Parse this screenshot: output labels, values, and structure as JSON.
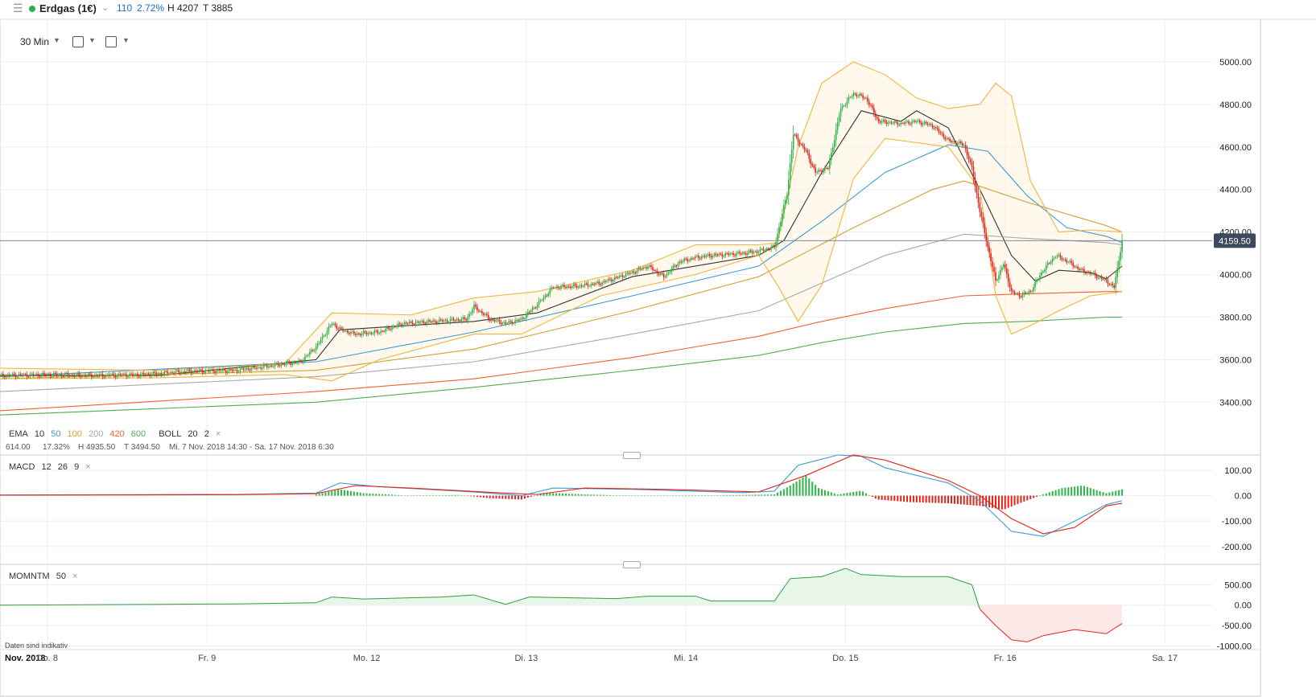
{
  "header": {
    "menu_icon": "hamburger-icon",
    "instrument": "Erdgas (1€)",
    "change": "110",
    "change_pct": "2.72%",
    "high": "H 4207",
    "low": "T 3885",
    "colors": {
      "live": "#2db34a",
      "change": "#1f6fb5"
    }
  },
  "toolbar": {
    "interval": "30 Min",
    "chart_type_icon": "candlestick-icon",
    "indicator_icon": "indicator-icon"
  },
  "indicators": {
    "ema": {
      "label": "EMA",
      "periods": [
        "10",
        "50",
        "100",
        "200",
        "420",
        "600"
      ],
      "colors": [
        "#333333",
        "#3f9bd0",
        "#d4a030",
        "#a8a8a8",
        "#f0622a",
        "#4caf50"
      ]
    },
    "boll": {
      "label": "BOLL",
      "p1": "20",
      "p2": "2"
    },
    "macd": {
      "label": "MACD",
      "p1": "12",
      "p2": "26",
      "p3": "9"
    },
    "momntm": {
      "label": "MOMNTM",
      "p1": "50"
    },
    "close_symbol": "×"
  },
  "range_info": {
    "range": "614.00",
    "range_pct": "17.32%",
    "high": "H 4935.50",
    "low": "T 3494.50",
    "period": "Mi. 7 Nov. 2018 14:30 - Sa. 17 Nov. 2018 6:30"
  },
  "current_price": "4159.50",
  "disclaimer": "Daten sind indikativ",
  "chart_data": [
    {
      "type": "candlestick",
      "title": "Erdgas (1€)",
      "ylim": [
        3250,
        5200
      ],
      "yticks": [
        "3400.00",
        "3600.00",
        "3800.00",
        "4000.00",
        "4200.00",
        "4400.00",
        "4600.00",
        "4800.00",
        "5000.00"
      ],
      "x_labels": [
        "Nov. 2018",
        "Do. 8",
        "Fr. 9",
        "Mo. 12",
        "Di. 13",
        "Mi. 14",
        "Do. 15",
        "Fr. 16",
        "Sa. 17"
      ],
      "x_ticks": [
        0,
        30,
        131,
        232,
        333,
        434,
        535,
        636,
        737
      ],
      "x_range": [
        0,
        767
      ],
      "last_bar_index": 710,
      "last_price": 4159.5,
      "close_anchors": [
        [
          0,
          3525
        ],
        [
          30,
          3530
        ],
        [
          60,
          3525
        ],
        [
          90,
          3530
        ],
        [
          120,
          3545
        ],
        [
          150,
          3550
        ],
        [
          170,
          3570
        ],
        [
          190,
          3590
        ],
        [
          200,
          3660
        ],
        [
          210,
          3770
        ],
        [
          216,
          3740
        ],
        [
          225,
          3720
        ],
        [
          240,
          3730
        ],
        [
          255,
          3770
        ],
        [
          275,
          3780
        ],
        [
          295,
          3790
        ],
        [
          300,
          3850
        ],
        [
          310,
          3790
        ],
        [
          320,
          3770
        ],
        [
          330,
          3790
        ],
        [
          340,
          3860
        ],
        [
          350,
          3940
        ],
        [
          365,
          3945
        ],
        [
          380,
          3960
        ],
        [
          400,
          4010
        ],
        [
          410,
          4040
        ],
        [
          420,
          3990
        ],
        [
          430,
          4060
        ],
        [
          440,
          4080
        ],
        [
          450,
          4090
        ],
        [
          470,
          4100
        ],
        [
          480,
          4110
        ],
        [
          490,
          4130
        ],
        [
          498,
          4380
        ],
        [
          502,
          4660
        ],
        [
          510,
          4580
        ],
        [
          516,
          4480
        ],
        [
          524,
          4500
        ],
        [
          532,
          4780
        ],
        [
          540,
          4850
        ],
        [
          548,
          4830
        ],
        [
          556,
          4720
        ],
        [
          570,
          4710
        ],
        [
          580,
          4720
        ],
        [
          590,
          4700
        ],
        [
          600,
          4630
        ],
        [
          610,
          4610
        ],
        [
          615,
          4500
        ],
        [
          620,
          4300
        ],
        [
          625,
          4130
        ],
        [
          630,
          3970
        ],
        [
          635,
          4050
        ],
        [
          640,
          3920
        ],
        [
          645,
          3900
        ],
        [
          652,
          3920
        ],
        [
          660,
          4020
        ],
        [
          668,
          4090
        ],
        [
          676,
          4060
        ],
        [
          684,
          4020
        ],
        [
          692,
          4000
        ],
        [
          700,
          3970
        ],
        [
          705,
          3940
        ],
        [
          710,
          4159.5
        ]
      ],
      "ema_series": {
        "EMA 10": [
          [
            0,
            3525
          ],
          [
            100,
            3525
          ],
          [
            200,
            3600
          ],
          [
            215,
            3740
          ],
          [
            300,
            3780
          ],
          [
            340,
            3820
          ],
          [
            400,
            3990
          ],
          [
            480,
            4090
          ],
          [
            496,
            4160
          ],
          [
            520,
            4480
          ],
          [
            545,
            4770
          ],
          [
            570,
            4720
          ],
          [
            580,
            4770
          ],
          [
            600,
            4690
          ],
          [
            620,
            4400
          ],
          [
            640,
            4090
          ],
          [
            655,
            3970
          ],
          [
            670,
            4020
          ],
          [
            690,
            4010
          ],
          [
            700,
            3980
          ],
          [
            710,
            4040
          ]
        ],
        "EMA 50": [
          [
            0,
            3520
          ],
          [
            200,
            3590
          ],
          [
            300,
            3730
          ],
          [
            400,
            3900
          ],
          [
            480,
            4040
          ],
          [
            520,
            4250
          ],
          [
            560,
            4480
          ],
          [
            600,
            4610
          ],
          [
            625,
            4580
          ],
          [
            650,
            4370
          ],
          [
            675,
            4220
          ],
          [
            700,
            4180
          ],
          [
            710,
            4150
          ]
        ],
        "EMA 100": [
          [
            0,
            3510
          ],
          [
            200,
            3550
          ],
          [
            300,
            3650
          ],
          [
            400,
            3830
          ],
          [
            480,
            3990
          ],
          [
            540,
            4220
          ],
          [
            590,
            4400
          ],
          [
            610,
            4440
          ],
          [
            650,
            4340
          ],
          [
            700,
            4230
          ],
          [
            710,
            4200
          ]
        ],
        "EMA 200": [
          [
            0,
            3450
          ],
          [
            200,
            3520
          ],
          [
            300,
            3590
          ],
          [
            400,
            3720
          ],
          [
            480,
            3830
          ],
          [
            520,
            3960
          ],
          [
            560,
            4090
          ],
          [
            610,
            4190
          ],
          [
            650,
            4170
          ],
          [
            700,
            4150
          ],
          [
            710,
            4140
          ]
        ],
        "EMA 420": [
          [
            0,
            3360
          ],
          [
            200,
            3450
          ],
          [
            300,
            3510
          ],
          [
            400,
            3610
          ],
          [
            480,
            3710
          ],
          [
            520,
            3780
          ],
          [
            560,
            3840
          ],
          [
            610,
            3900
          ],
          [
            650,
            3910
          ],
          [
            700,
            3920
          ],
          [
            710,
            3920
          ]
        ],
        "EMA 600": [
          [
            0,
            3340
          ],
          [
            200,
            3400
          ],
          [
            300,
            3470
          ],
          [
            400,
            3550
          ],
          [
            480,
            3620
          ],
          [
            520,
            3680
          ],
          [
            560,
            3730
          ],
          [
            610,
            3770
          ],
          [
            650,
            3780
          ],
          [
            700,
            3800
          ],
          [
            710,
            3800
          ]
        ]
      },
      "bollinger": {
        "upper": [
          [
            0,
            3560
          ],
          [
            100,
            3550
          ],
          [
            180,
            3580
          ],
          [
            210,
            3820
          ],
          [
            260,
            3810
          ],
          [
            300,
            3890
          ],
          [
            340,
            3920
          ],
          [
            400,
            4020
          ],
          [
            440,
            4140
          ],
          [
            480,
            4140
          ],
          [
            492,
            4150
          ],
          [
            505,
            4600
          ],
          [
            520,
            4900
          ],
          [
            540,
            5000
          ],
          [
            560,
            4940
          ],
          [
            580,
            4830
          ],
          [
            600,
            4780
          ],
          [
            620,
            4800
          ],
          [
            630,
            4900
          ],
          [
            640,
            4840
          ],
          [
            652,
            4440
          ],
          [
            670,
            4200
          ],
          [
            690,
            4210
          ],
          [
            710,
            4200
          ]
        ],
        "lower": [
          [
            0,
            3510
          ],
          [
            100,
            3515
          ],
          [
            180,
            3530
          ],
          [
            210,
            3500
          ],
          [
            240,
            3600
          ],
          [
            300,
            3720
          ],
          [
            330,
            3720
          ],
          [
            380,
            3900
          ],
          [
            440,
            4000
          ],
          [
            480,
            4090
          ],
          [
            492,
            3950
          ],
          [
            505,
            3780
          ],
          [
            520,
            3950
          ],
          [
            540,
            4450
          ],
          [
            560,
            4640
          ],
          [
            580,
            4620
          ],
          [
            600,
            4600
          ],
          [
            620,
            4400
          ],
          [
            630,
            3900
          ],
          [
            640,
            3720
          ],
          [
            652,
            3760
          ],
          [
            670,
            3830
          ],
          [
            690,
            3900
          ],
          [
            710,
            3920
          ]
        ]
      }
    },
    {
      "type": "line",
      "title": "MACD 12 26 9",
      "ylim": [
        -270,
        160
      ],
      "yticks": [
        "-200.00",
        "-100.00",
        "0.00",
        "100.00"
      ],
      "series": [
        {
          "name": "MACD",
          "values": [
            [
              0,
              3
            ],
            [
              150,
              5
            ],
            [
              200,
              10
            ],
            [
              215,
              50
            ],
            [
              240,
              35
            ],
            [
              300,
              15
            ],
            [
              330,
              0
            ],
            [
              350,
              30
            ],
            [
              400,
              25
            ],
            [
              470,
              12
            ],
            [
              490,
              18
            ],
            [
              505,
              120
            ],
            [
              530,
              160
            ],
            [
              545,
              155
            ],
            [
              560,
              110
            ],
            [
              600,
              50
            ],
            [
              620,
              -20
            ],
            [
              640,
              -140
            ],
            [
              660,
              -160
            ],
            [
              680,
              -100
            ],
            [
              700,
              -35
            ],
            [
              710,
              -20
            ]
          ]
        },
        {
          "name": "Signal",
          "values": [
            [
              0,
              2
            ],
            [
              150,
              4
            ],
            [
              200,
              8
            ],
            [
              225,
              40
            ],
            [
              260,
              30
            ],
            [
              320,
              10
            ],
            [
              340,
              5
            ],
            [
              370,
              30
            ],
            [
              420,
              25
            ],
            [
              480,
              15
            ],
            [
              510,
              80
            ],
            [
              540,
              160
            ],
            [
              560,
              140
            ],
            [
              600,
              60
            ],
            [
              620,
              0
            ],
            [
              640,
              -90
            ],
            [
              660,
              -150
            ],
            [
              680,
              -125
            ],
            [
              700,
              -40
            ],
            [
              710,
              -30
            ]
          ]
        }
      ],
      "histogram": [
        [
          200,
          5
        ],
        [
          215,
          25
        ],
        [
          230,
          10
        ],
        [
          260,
          0
        ],
        [
          290,
          3
        ],
        [
          310,
          -10
        ],
        [
          330,
          -15
        ],
        [
          345,
          12
        ],
        [
          370,
          5
        ],
        [
          400,
          0
        ],
        [
          440,
          0
        ],
        [
          490,
          5
        ],
        [
          500,
          40
        ],
        [
          510,
          80
        ],
        [
          518,
          30
        ],
        [
          530,
          5
        ],
        [
          545,
          20
        ],
        [
          555,
          -15
        ],
        [
          575,
          -25
        ],
        [
          600,
          -30
        ],
        [
          620,
          -40
        ],
        [
          635,
          -55
        ],
        [
          645,
          -30
        ],
        [
          660,
          5
        ],
        [
          672,
          30
        ],
        [
          685,
          40
        ],
        [
          700,
          10
        ],
        [
          710,
          25
        ]
      ]
    },
    {
      "type": "area",
      "title": "MOMNTM 50",
      "ylim": [
        -1050,
        1000
      ],
      "yticks": [
        "-1000.00",
        "-500.00",
        "0.00",
        "500.00"
      ],
      "values": [
        [
          0,
          0
        ],
        [
          100,
          20
        ],
        [
          150,
          30
        ],
        [
          200,
          60
        ],
        [
          210,
          200
        ],
        [
          230,
          150
        ],
        [
          280,
          200
        ],
        [
          300,
          250
        ],
        [
          320,
          20
        ],
        [
          335,
          200
        ],
        [
          390,
          160
        ],
        [
          410,
          220
        ],
        [
          440,
          220
        ],
        [
          450,
          100
        ],
        [
          490,
          100
        ],
        [
          500,
          650
        ],
        [
          520,
          700
        ],
        [
          535,
          900
        ],
        [
          545,
          750
        ],
        [
          570,
          700
        ],
        [
          600,
          700
        ],
        [
          615,
          500
        ],
        [
          620,
          -100
        ],
        [
          630,
          -500
        ],
        [
          640,
          -850
        ],
        [
          650,
          -900
        ],
        [
          660,
          -750
        ],
        [
          680,
          -600
        ],
        [
          700,
          -700
        ],
        [
          710,
          -450
        ]
      ]
    }
  ]
}
